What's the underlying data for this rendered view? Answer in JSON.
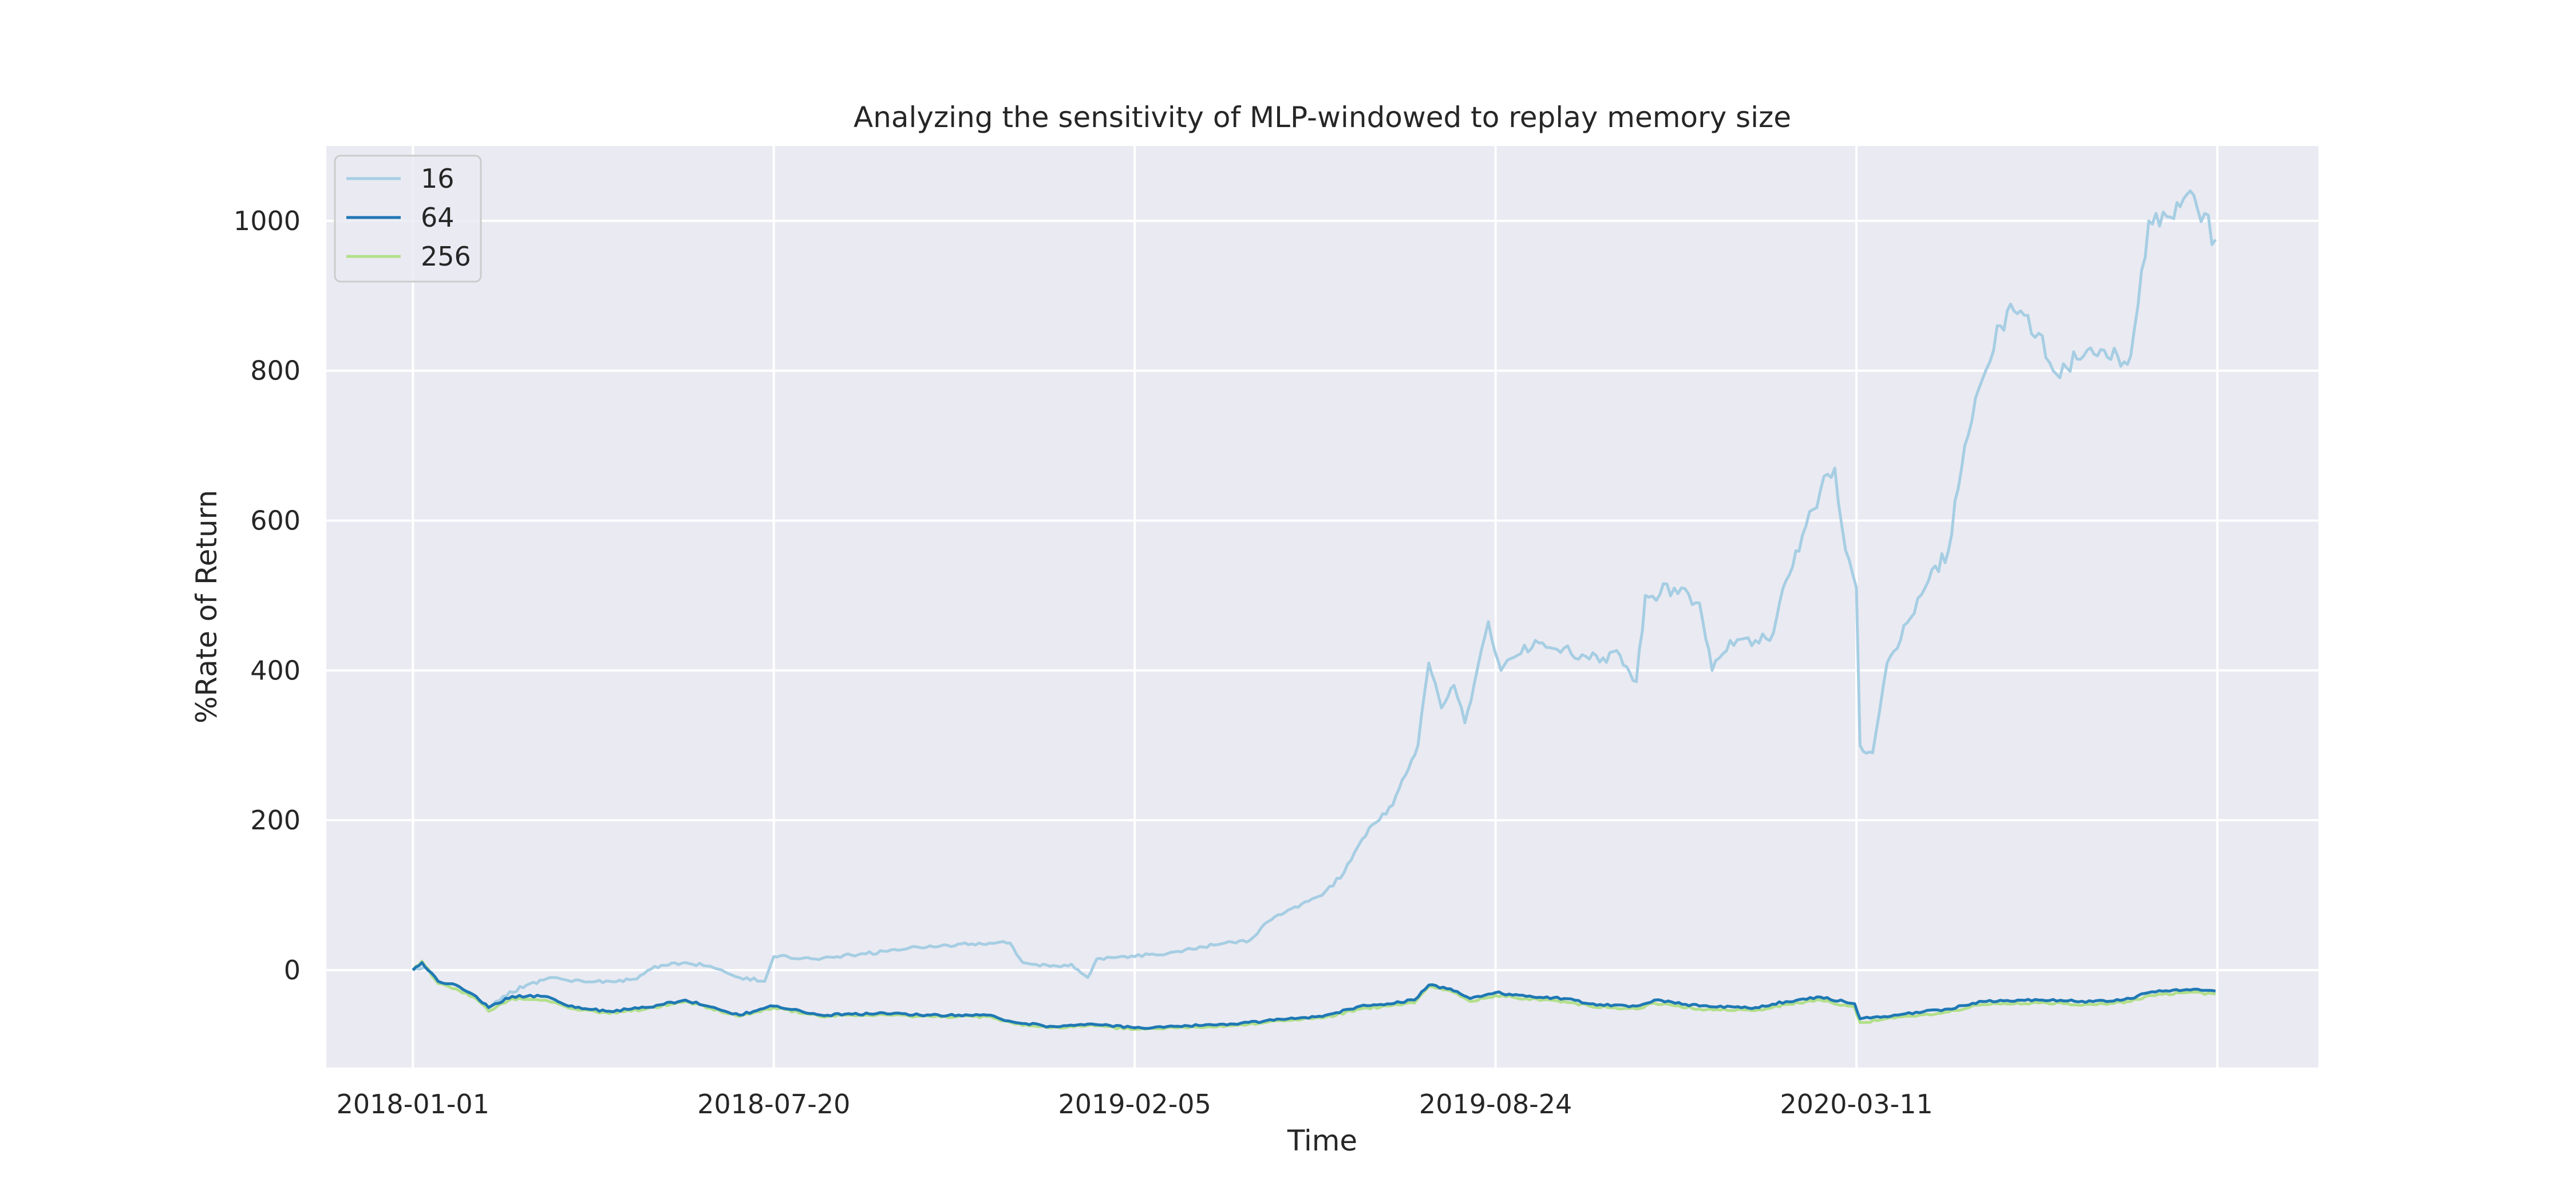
{
  "chart_data": {
    "type": "line",
    "title": "Analyzing the sensitivity of MLP-windowed to replay memory size",
    "xlabel": "Time",
    "ylabel": "%Rate of Return",
    "x_ticks": [
      "2018-01-01",
      "2018-07-20",
      "2019-02-05",
      "2019-08-24",
      "2020-03-11"
    ],
    "y_ticks": [
      0,
      200,
      400,
      600,
      800,
      1000
    ],
    "xlim": [
      "2017-11-14",
      "2020-11-22"
    ],
    "ylim": [
      -130,
      1100
    ],
    "grid": true,
    "legend_position": "top-left",
    "colors": {
      "background": "#eaeaf2",
      "grid": "#ffffff",
      "16": "#a6cee3",
      "64": "#1f78b4",
      "256": "#b2df8a"
    },
    "series": [
      {
        "name": "16",
        "points": [
          [
            "2018-01-01",
            0
          ],
          [
            "2018-01-08",
            5
          ],
          [
            "2018-01-15",
            -15
          ],
          [
            "2018-01-25",
            -20
          ],
          [
            "2018-02-05",
            -35
          ],
          [
            "2018-02-12",
            -50
          ],
          [
            "2018-02-20",
            -35
          ],
          [
            "2018-03-05",
            -20
          ],
          [
            "2018-03-20",
            -10
          ],
          [
            "2018-04-05",
            -15
          ],
          [
            "2018-04-20",
            -15
          ],
          [
            "2018-05-05",
            -12
          ],
          [
            "2018-05-15",
            5
          ],
          [
            "2018-06-01",
            10
          ],
          [
            "2018-06-15",
            5
          ],
          [
            "2018-07-01",
            -10
          ],
          [
            "2018-07-15",
            -15
          ],
          [
            "2018-07-20",
            18
          ],
          [
            "2018-08-10",
            15
          ],
          [
            "2018-09-01",
            20
          ],
          [
            "2018-10-01",
            28
          ],
          [
            "2018-11-01",
            35
          ],
          [
            "2018-11-28",
            36
          ],
          [
            "2018-12-05",
            10
          ],
          [
            "2018-12-20",
            5
          ],
          [
            "2019-01-01",
            8
          ],
          [
            "2019-01-10",
            -10
          ],
          [
            "2019-01-15",
            15
          ],
          [
            "2019-02-05",
            18
          ],
          [
            "2019-03-01",
            25
          ],
          [
            "2019-03-25",
            35
          ],
          [
            "2019-04-10",
            40
          ],
          [
            "2019-04-20",
            65
          ],
          [
            "2019-05-01",
            80
          ],
          [
            "2019-05-20",
            100
          ],
          [
            "2019-06-01",
            130
          ],
          [
            "2019-06-15",
            190
          ],
          [
            "2019-06-28",
            220
          ],
          [
            "2019-07-05",
            260
          ],
          [
            "2019-07-12",
            300
          ],
          [
            "2019-07-18",
            410
          ],
          [
            "2019-07-25",
            350
          ],
          [
            "2019-08-01",
            380
          ],
          [
            "2019-08-07",
            330
          ],
          [
            "2019-08-12",
            380
          ],
          [
            "2019-08-20",
            465
          ],
          [
            "2019-08-27",
            400
          ],
          [
            "2019-09-05",
            420
          ],
          [
            "2019-09-15",
            440
          ],
          [
            "2019-10-01",
            430
          ],
          [
            "2019-10-15",
            415
          ],
          [
            "2019-11-01",
            420
          ],
          [
            "2019-11-10",
            385
          ],
          [
            "2019-11-15",
            500
          ],
          [
            "2019-12-01",
            510
          ],
          [
            "2019-12-15",
            490
          ],
          [
            "2019-12-22",
            400
          ],
          [
            "2020-01-01",
            440
          ],
          [
            "2020-01-15",
            440
          ],
          [
            "2020-01-25",
            450
          ],
          [
            "2020-02-01",
            520
          ],
          [
            "2020-02-10",
            580
          ],
          [
            "2020-02-20",
            640
          ],
          [
            "2020-02-28",
            670
          ],
          [
            "2020-03-05",
            560
          ],
          [
            "2020-03-11",
            510
          ],
          [
            "2020-03-13",
            300
          ],
          [
            "2020-03-20",
            290
          ],
          [
            "2020-03-28",
            410
          ],
          [
            "2020-04-10",
            470
          ],
          [
            "2020-04-20",
            520
          ],
          [
            "2020-05-01",
            560
          ],
          [
            "2020-05-10",
            700
          ],
          [
            "2020-05-20",
            790
          ],
          [
            "2020-05-28",
            860
          ],
          [
            "2020-06-10",
            880
          ],
          [
            "2020-06-20",
            850
          ],
          [
            "2020-06-28",
            800
          ],
          [
            "2020-07-15",
            820
          ],
          [
            "2020-07-30",
            815
          ],
          [
            "2020-08-10",
            820
          ],
          [
            "2020-08-20",
            1000
          ],
          [
            "2020-09-01",
            1005
          ],
          [
            "2020-09-10",
            1035
          ],
          [
            "2020-09-20",
            1010
          ],
          [
            "2020-09-26",
            975
          ]
        ]
      },
      {
        "name": "64",
        "points": [
          [
            "2018-01-01",
            0
          ],
          [
            "2018-01-06",
            10
          ],
          [
            "2018-01-15",
            -15
          ],
          [
            "2018-01-25",
            -20
          ],
          [
            "2018-02-05",
            -35
          ],
          [
            "2018-02-12",
            -50
          ],
          [
            "2018-02-25",
            -35
          ],
          [
            "2018-03-15",
            -35
          ],
          [
            "2018-04-01",
            -50
          ],
          [
            "2018-04-20",
            -55
          ],
          [
            "2018-05-10",
            -50
          ],
          [
            "2018-06-01",
            -40
          ],
          [
            "2018-07-01",
            -60
          ],
          [
            "2018-07-20",
            -48
          ],
          [
            "2018-08-15",
            -60
          ],
          [
            "2018-09-15",
            -58
          ],
          [
            "2018-10-15",
            -60
          ],
          [
            "2018-11-15",
            -60
          ],
          [
            "2018-12-01",
            -70
          ],
          [
            "2018-12-20",
            -75
          ],
          [
            "2019-01-10",
            -72
          ],
          [
            "2019-02-05",
            -77
          ],
          [
            "2019-03-01",
            -75
          ],
          [
            "2019-04-01",
            -72
          ],
          [
            "2019-05-01",
            -65
          ],
          [
            "2019-05-20",
            -62
          ],
          [
            "2019-06-10",
            -48
          ],
          [
            "2019-06-25",
            -45
          ],
          [
            "2019-07-10",
            -40
          ],
          [
            "2019-07-18",
            -20
          ],
          [
            "2019-07-30",
            -25
          ],
          [
            "2019-08-10",
            -38
          ],
          [
            "2019-08-24",
            -30
          ],
          [
            "2019-09-10",
            -35
          ],
          [
            "2019-10-01",
            -38
          ],
          [
            "2019-10-15",
            -45
          ],
          [
            "2019-11-10",
            -48
          ],
          [
            "2019-11-20",
            -40
          ],
          [
            "2019-12-15",
            -48
          ],
          [
            "2020-01-15",
            -50
          ],
          [
            "2020-02-01",
            -42
          ],
          [
            "2020-02-20",
            -36
          ],
          [
            "2020-03-10",
            -45
          ],
          [
            "2020-03-13",
            -65
          ],
          [
            "2020-04-01",
            -60
          ],
          [
            "2020-05-01",
            -52
          ],
          [
            "2020-05-20",
            -42
          ],
          [
            "2020-06-20",
            -40
          ],
          [
            "2020-07-20",
            -42
          ],
          [
            "2020-08-10",
            -38
          ],
          [
            "2020-08-20",
            -30
          ],
          [
            "2020-09-10",
            -26
          ],
          [
            "2020-09-26",
            -28
          ]
        ]
      },
      {
        "name": "256",
        "points": [
          [
            "2018-01-01",
            0
          ],
          [
            "2018-01-06",
            12
          ],
          [
            "2018-01-15",
            -18
          ],
          [
            "2018-01-25",
            -25
          ],
          [
            "2018-02-05",
            -38
          ],
          [
            "2018-02-12",
            -55
          ],
          [
            "2018-02-25",
            -38
          ],
          [
            "2018-03-15",
            -40
          ],
          [
            "2018-04-01",
            -52
          ],
          [
            "2018-04-20",
            -58
          ],
          [
            "2018-05-10",
            -52
          ],
          [
            "2018-06-01",
            -42
          ],
          [
            "2018-07-01",
            -62
          ],
          [
            "2018-07-20",
            -50
          ],
          [
            "2018-08-15",
            -62
          ],
          [
            "2018-09-15",
            -60
          ],
          [
            "2018-10-15",
            -62
          ],
          [
            "2018-11-15",
            -62
          ],
          [
            "2018-12-01",
            -72
          ],
          [
            "2018-12-20",
            -77
          ],
          [
            "2019-01-10",
            -74
          ],
          [
            "2019-02-05",
            -79
          ],
          [
            "2019-03-01",
            -77
          ],
          [
            "2019-04-01",
            -74
          ],
          [
            "2019-05-01",
            -67
          ],
          [
            "2019-05-20",
            -64
          ],
          [
            "2019-06-10",
            -52
          ],
          [
            "2019-06-25",
            -48
          ],
          [
            "2019-07-10",
            -44
          ],
          [
            "2019-07-18",
            -22
          ],
          [
            "2019-07-30",
            -28
          ],
          [
            "2019-08-10",
            -42
          ],
          [
            "2019-08-24",
            -34
          ],
          [
            "2019-09-10",
            -38
          ],
          [
            "2019-10-01",
            -42
          ],
          [
            "2019-10-15",
            -48
          ],
          [
            "2019-11-10",
            -52
          ],
          [
            "2019-11-20",
            -44
          ],
          [
            "2019-12-15",
            -52
          ],
          [
            "2020-01-15",
            -54
          ],
          [
            "2020-02-01",
            -46
          ],
          [
            "2020-02-20",
            -40
          ],
          [
            "2020-03-10",
            -50
          ],
          [
            "2020-03-13",
            -70
          ],
          [
            "2020-04-01",
            -64
          ],
          [
            "2020-05-01",
            -56
          ],
          [
            "2020-05-20",
            -46
          ],
          [
            "2020-06-20",
            -44
          ],
          [
            "2020-07-20",
            -46
          ],
          [
            "2020-08-10",
            -42
          ],
          [
            "2020-08-20",
            -34
          ],
          [
            "2020-09-10",
            -30
          ],
          [
            "2020-09-26",
            -32
          ]
        ]
      }
    ]
  }
}
